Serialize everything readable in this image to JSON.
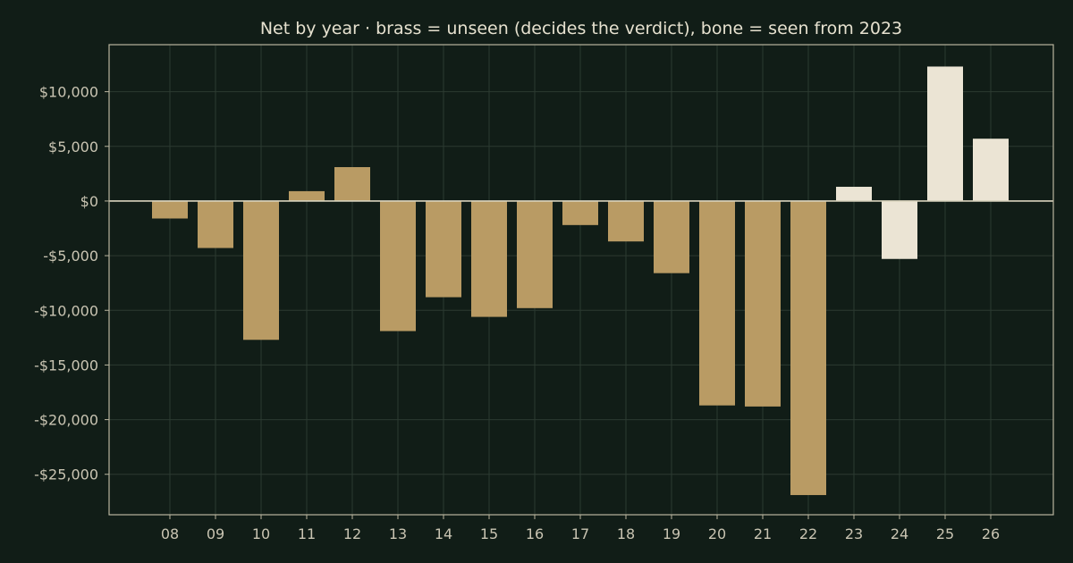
{
  "chart_data": {
    "type": "bar",
    "title": "Net by year  ·  brass = unseen (decides the verdict), bone = seen from 2023",
    "xlabel": "",
    "ylabel": "",
    "categories": [
      "08",
      "09",
      "10",
      "11",
      "12",
      "13",
      "14",
      "15",
      "16",
      "17",
      "18",
      "19",
      "20",
      "21",
      "22",
      "23",
      "24",
      "25",
      "26"
    ],
    "values": [
      -1600,
      -4300,
      -12700,
      900,
      3100,
      -11900,
      -8800,
      -10600,
      -9800,
      -2200,
      -3700,
      -6600,
      -18700,
      -18800,
      -26900,
      1300,
      -5300,
      12300,
      5700
    ],
    "groups": [
      "unseen",
      "unseen",
      "unseen",
      "unseen",
      "unseen",
      "unseen",
      "unseen",
      "unseen",
      "unseen",
      "unseen",
      "unseen",
      "unseen",
      "unseen",
      "unseen",
      "unseen",
      "seen",
      "seen",
      "seen",
      "seen"
    ],
    "ylim": [
      -28700,
      14300
    ],
    "yticks": [
      10000,
      5000,
      0,
      -5000,
      -10000,
      -15000,
      -20000,
      -25000
    ],
    "ytick_labels": [
      "$10,000",
      "$5,000",
      "$0",
      "-$5,000",
      "-$10,000",
      "-$15,000",
      "-$20,000",
      "-$25,000"
    ],
    "grid": true,
    "colors": {
      "unseen": "#b99b64",
      "seen": "#ebe4d4",
      "background": "#111d17",
      "grid": "#2c3a31",
      "axis": "#b9b49e",
      "text": "#c9c4b2"
    }
  }
}
